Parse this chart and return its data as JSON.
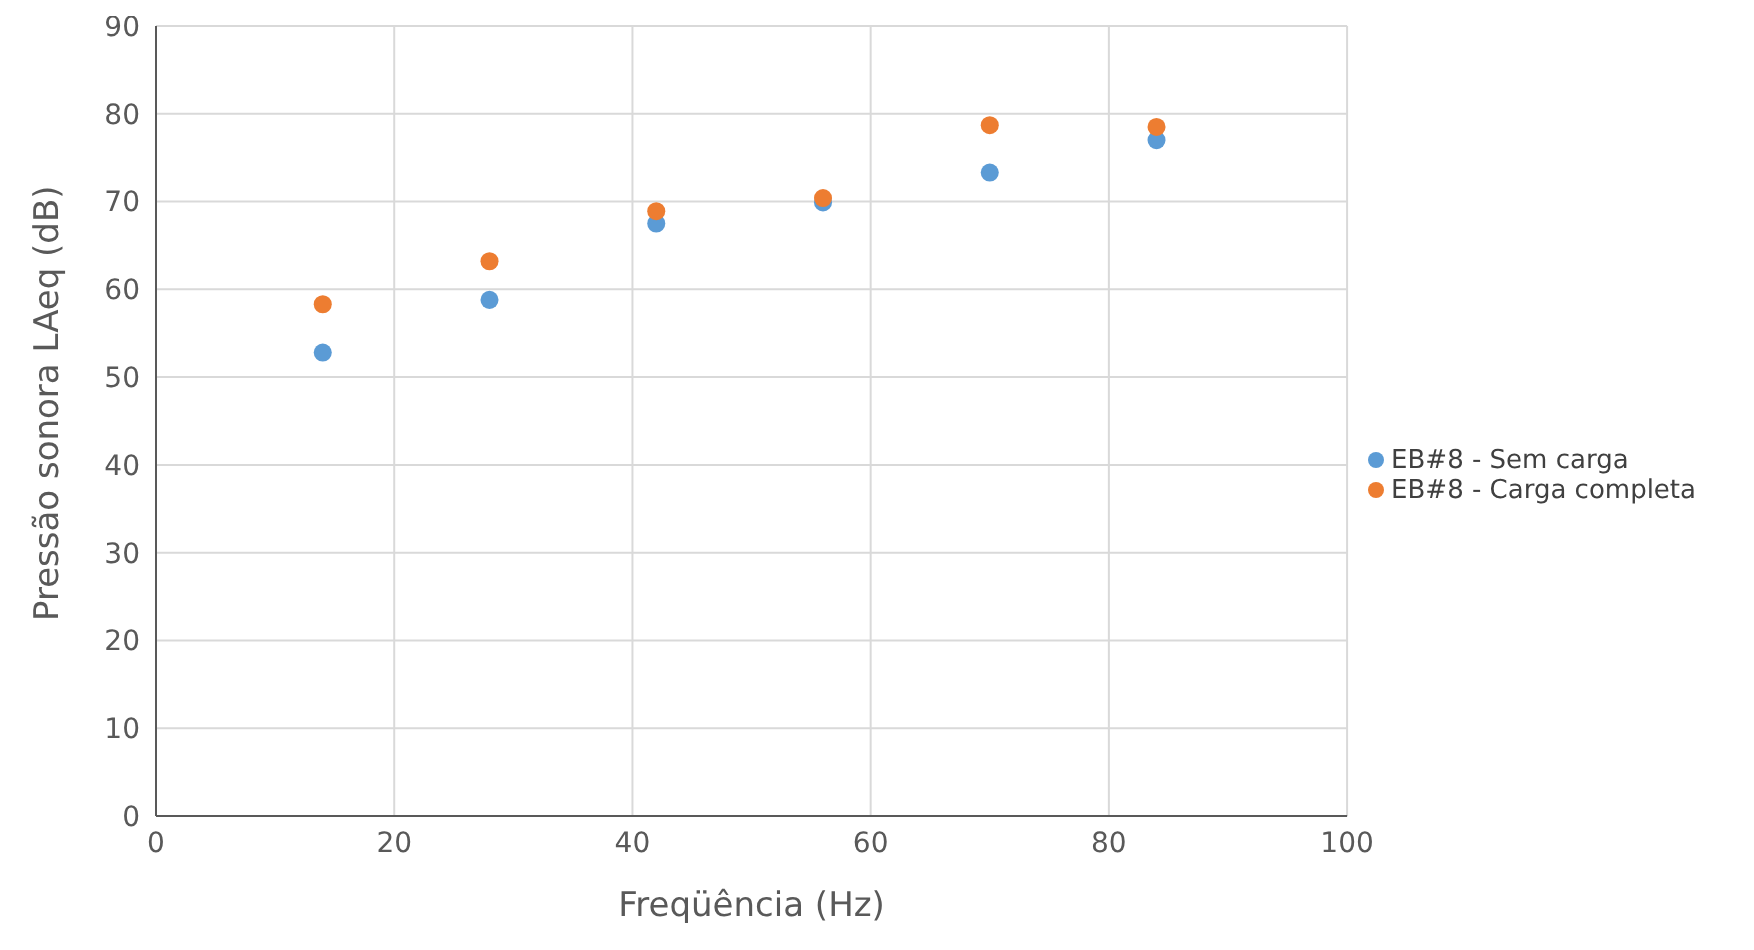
{
  "chart_data": {
    "type": "scatter",
    "xlabel": "Freqüência (Hz)",
    "ylabel": "Pressão sonora LAeq (dB)",
    "x": [
      14,
      28,
      42,
      56,
      70,
      84
    ],
    "series": [
      {
        "name": "EB#8 - Sem carga",
        "color": "#5b9bd5",
        "values": [
          52.8,
          58.8,
          67.5,
          69.9,
          73.3,
          77.0
        ]
      },
      {
        "name": "EB#8 - Carga completa",
        "color": "#ed7d31",
        "values": [
          58.3,
          63.2,
          68.9,
          70.4,
          78.7,
          78.5
        ]
      }
    ],
    "xlim": [
      0,
      100
    ],
    "xticks": [
      0,
      20,
      40,
      60,
      80,
      100
    ],
    "ylim": [
      0,
      90
    ],
    "yticks": [
      0,
      10,
      20,
      30,
      40,
      50,
      60,
      70,
      80,
      90
    ],
    "grid": true,
    "legend": "right",
    "marker": "circle"
  }
}
